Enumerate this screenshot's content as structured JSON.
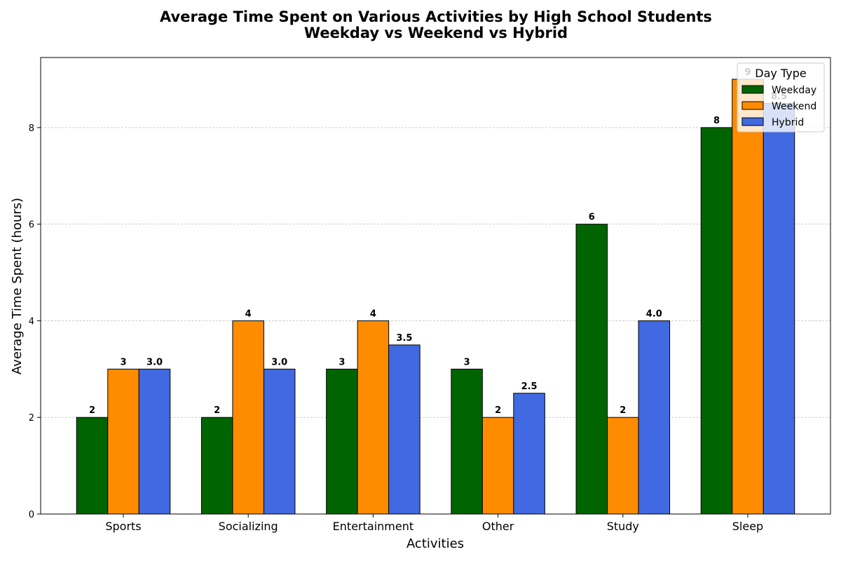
{
  "chart_data": {
    "type": "bar",
    "title": "Average Time Spent on Various Activities by High School Students",
    "subtitle": "Weekday vs Weekend vs Hybrid",
    "xlabel": "Activities",
    "ylabel": "Average Time Spent (hours)",
    "categories": [
      "Sports",
      "Socializing",
      "Entertainment",
      "Other",
      "Study",
      "Sleep"
    ],
    "series": [
      {
        "name": "Weekday",
        "color": "#006400",
        "values": [
          2,
          2,
          3,
          3,
          6,
          8
        ],
        "labels": [
          "2",
          "2",
          "3",
          "3",
          "6",
          "8"
        ]
      },
      {
        "name": "Weekend",
        "color": "#ff8c00",
        "values": [
          3,
          4,
          4,
          2,
          2,
          9
        ],
        "labels": [
          "3",
          "4",
          "4",
          "2",
          "2",
          "9"
        ]
      },
      {
        "name": "Hybrid",
        "color": "#4169e1",
        "values": [
          3.0,
          3.0,
          3.5,
          2.5,
          4.0,
          8.5
        ],
        "labels": [
          "3.0",
          "3.0",
          "3.5",
          "2.5",
          "4.0",
          "8.5"
        ]
      }
    ],
    "ylim": [
      0,
      9.45
    ],
    "yticks": [
      0,
      2,
      4,
      6,
      8
    ],
    "grid": "y-dashed",
    "legend": {
      "title": "Day Type",
      "placement": "top-right"
    }
  }
}
